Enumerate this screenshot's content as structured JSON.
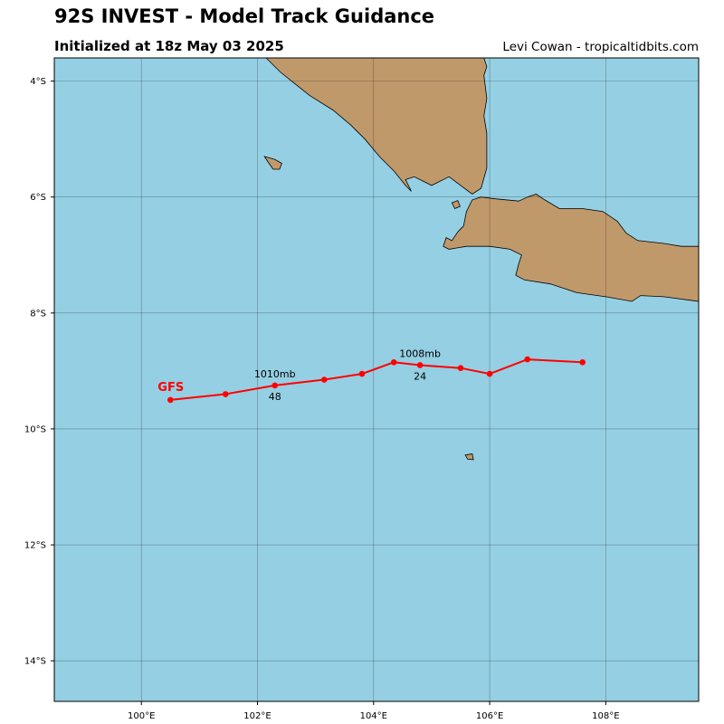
{
  "header": {
    "title": "92S INVEST - Model Track Guidance",
    "subtitle": "Initialized at 18z May 03 2025",
    "credit": "Levi Cowan - tropicaltidbits.com"
  },
  "map": {
    "lon_range": [
      98.5,
      109.6
    ],
    "lat_range": [
      -14.7,
      -3.6
    ],
    "ocean_color": "#95cfe3",
    "land_color": "#c0996b",
    "grid_lons": [
      100,
      102,
      104,
      106,
      108
    ],
    "grid_lats": [
      -4,
      -6,
      -8,
      -10,
      -12,
      -14
    ],
    "lon_tick_labels": [
      "100°E",
      "102°E",
      "104°E",
      "106°E",
      "108°E"
    ],
    "lat_tick_labels": [
      "4°S",
      "6°S",
      "8°S",
      "10°S",
      "12°S",
      "14°S"
    ],
    "land": [
      {
        "name": "sumatra",
        "points": [
          [
            102.15,
            -3.6
          ],
          [
            102.4,
            -3.85
          ],
          [
            102.65,
            -4.05
          ],
          [
            102.9,
            -4.25
          ],
          [
            103.3,
            -4.5
          ],
          [
            103.6,
            -4.75
          ],
          [
            103.85,
            -5.0
          ],
          [
            104.1,
            -5.3
          ],
          [
            104.35,
            -5.55
          ],
          [
            104.55,
            -5.8
          ],
          [
            104.65,
            -5.9
          ],
          [
            104.55,
            -5.7
          ],
          [
            104.7,
            -5.65
          ],
          [
            105.0,
            -5.8
          ],
          [
            105.3,
            -5.65
          ],
          [
            105.5,
            -5.8
          ],
          [
            105.7,
            -5.95
          ],
          [
            105.85,
            -5.85
          ],
          [
            105.95,
            -5.5
          ],
          [
            105.95,
            -4.9
          ],
          [
            105.9,
            -4.6
          ],
          [
            105.95,
            -4.3
          ],
          [
            105.9,
            -3.9
          ],
          [
            105.95,
            -3.75
          ],
          [
            105.9,
            -3.6
          ]
        ]
      },
      {
        "name": "java",
        "points": [
          [
            105.2,
            -6.85
          ],
          [
            105.25,
            -6.7
          ],
          [
            105.35,
            -6.75
          ],
          [
            105.45,
            -6.6
          ],
          [
            105.55,
            -6.5
          ],
          [
            105.6,
            -6.25
          ],
          [
            105.7,
            -6.05
          ],
          [
            105.85,
            -6.0
          ],
          [
            106.1,
            -6.03
          ],
          [
            106.5,
            -6.07
          ],
          [
            106.65,
            -6.0
          ],
          [
            106.8,
            -5.95
          ],
          [
            106.95,
            -6.05
          ],
          [
            107.2,
            -6.2
          ],
          [
            107.6,
            -6.2
          ],
          [
            107.95,
            -6.25
          ],
          [
            108.2,
            -6.42
          ],
          [
            108.35,
            -6.62
          ],
          [
            108.55,
            -6.75
          ],
          [
            109.0,
            -6.8
          ],
          [
            109.3,
            -6.85
          ],
          [
            109.6,
            -6.85
          ],
          [
            109.6,
            -7.8
          ],
          [
            109.0,
            -7.72
          ],
          [
            108.6,
            -7.7
          ],
          [
            108.45,
            -7.8
          ],
          [
            108.0,
            -7.72
          ],
          [
            107.5,
            -7.65
          ],
          [
            107.05,
            -7.5
          ],
          [
            106.6,
            -7.43
          ],
          [
            106.45,
            -7.35
          ],
          [
            106.5,
            -7.15
          ],
          [
            106.55,
            -7.0
          ],
          [
            106.35,
            -6.9
          ],
          [
            106.0,
            -6.85
          ],
          [
            105.6,
            -6.85
          ],
          [
            105.3,
            -6.9
          ]
        ]
      },
      {
        "name": "enggano",
        "points": [
          [
            102.12,
            -5.3
          ],
          [
            102.3,
            -5.35
          ],
          [
            102.42,
            -5.42
          ],
          [
            102.38,
            -5.52
          ],
          [
            102.27,
            -5.52
          ],
          [
            102.2,
            -5.42
          ]
        ]
      },
      {
        "name": "krakatau",
        "points": [
          [
            105.35,
            -6.1
          ],
          [
            105.45,
            -6.06
          ],
          [
            105.49,
            -6.16
          ],
          [
            105.4,
            -6.2
          ]
        ]
      },
      {
        "name": "christmas-island",
        "points": [
          [
            105.58,
            -10.45
          ],
          [
            105.7,
            -10.43
          ],
          [
            105.72,
            -10.53
          ],
          [
            105.62,
            -10.52
          ]
        ]
      }
    ]
  },
  "chart_data": {
    "type": "map-track",
    "tracks": [
      {
        "name": "GFS",
        "color": "#ff0000",
        "points": [
          {
            "lon": 107.6,
            "lat": -8.85
          },
          {
            "lon": 106.65,
            "lat": -8.8
          },
          {
            "lon": 106.0,
            "lat": -9.05
          },
          {
            "lon": 105.5,
            "lat": -8.95
          },
          {
            "lon": 104.8,
            "lat": -8.9
          },
          {
            "lon": 104.35,
            "lat": -8.85
          },
          {
            "lon": 103.8,
            "lat": -9.05
          },
          {
            "lon": 103.15,
            "lat": -9.15
          },
          {
            "lon": 102.3,
            "lat": -9.25
          },
          {
            "lon": 101.45,
            "lat": -9.4
          },
          {
            "lon": 100.5,
            "lat": -9.5
          }
        ],
        "annotations": [
          {
            "lon": 104.8,
            "lat": -8.9,
            "pressure": "1008mb",
            "hour": "24"
          },
          {
            "lon": 102.3,
            "lat": -9.25,
            "pressure": "1010mb",
            "hour": "48"
          }
        ]
      }
    ]
  }
}
